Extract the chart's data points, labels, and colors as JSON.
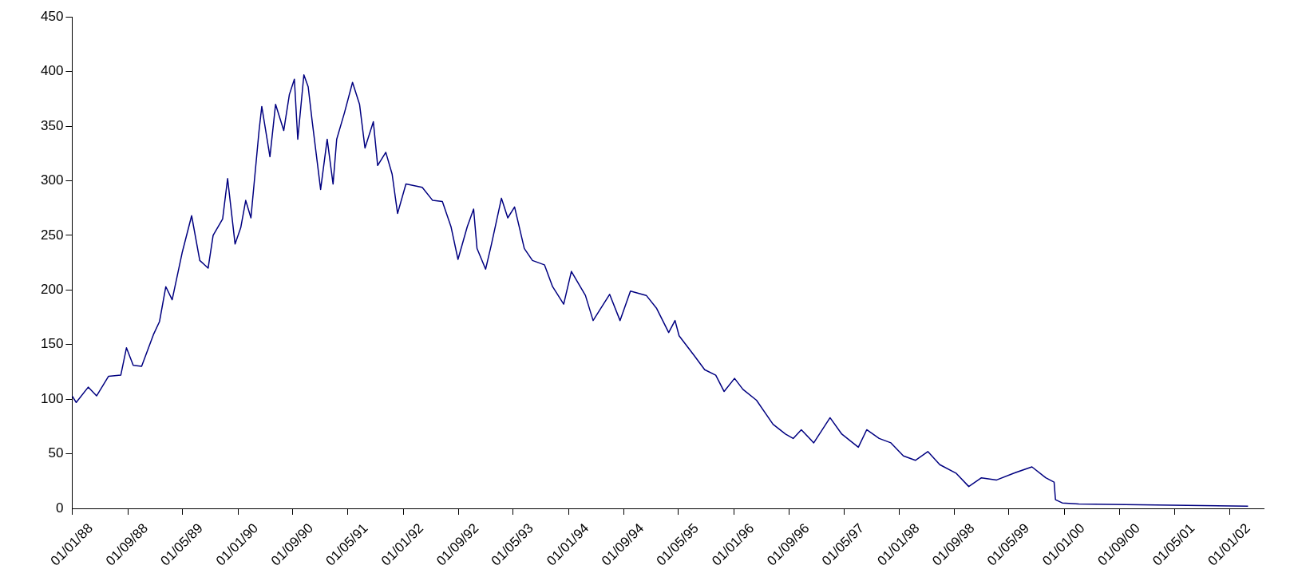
{
  "chart_data": {
    "type": "line",
    "x": [
      "1988-01-01",
      "1988-01-19",
      "1988-03-12",
      "1988-04-18",
      "1988-06-10",
      "1988-08-03",
      "1988-08-28",
      "1988-09-27",
      "1988-11-03",
      "1988-12-25",
      "1989-01-21",
      "1989-02-18",
      "1989-03-18",
      "1989-05-01",
      "1989-06-12",
      "1989-07-18",
      "1989-08-24",
      "1989-09-15",
      "1989-10-27",
      "1989-11-18",
      "1989-12-21",
      "1990-01-15",
      "1990-02-06",
      "1990-03-01",
      "1990-04-06",
      "1990-04-18",
      "1990-05-24",
      "1990-06-18",
      "1990-07-24",
      "1990-08-18",
      "1990-09-09",
      "1990-09-24",
      "1990-10-21",
      "1990-11-09",
      "1990-11-27",
      "1991-01-03",
      "1991-02-01",
      "1991-02-27",
      "1991-03-15",
      "1991-04-18",
      "1991-05-24",
      "1991-06-24",
      "1991-07-18",
      "1991-08-24",
      "1991-09-12",
      "1991-10-18",
      "1991-11-15",
      "1991-12-09",
      "1992-01-15",
      "1992-03-27",
      "1992-05-12",
      "1992-06-24",
      "1992-08-01",
      "1992-09-01",
      "1992-10-12",
      "1992-11-09",
      "1992-11-24",
      "1993-01-01",
      "1993-01-27",
      "1993-03-12",
      "1993-04-09",
      "1993-05-09",
      "1993-06-21",
      "1993-07-27",
      "1993-09-18",
      "1993-10-24",
      "1993-12-12",
      "1994-01-15",
      "1994-03-18",
      "1994-04-21",
      "1994-07-03",
      "1994-08-18",
      "1994-10-03",
      "1994-12-12",
      "1995-01-27",
      "1995-03-21",
      "1995-04-18",
      "1995-05-06",
      "1995-07-15",
      "1995-08-27",
      "1995-10-15",
      "1995-11-21",
      "1996-01-06",
      "1996-02-12",
      "1996-04-12",
      "1996-06-24",
      "1996-08-18",
      "1996-09-21",
      "1996-10-27",
      "1996-12-21",
      "1997-03-03",
      "1997-04-24",
      "1997-07-06",
      "1997-08-12",
      "1997-10-06",
      "1997-11-27",
      "1998-01-21",
      "1998-03-15",
      "1998-05-09",
      "1998-07-01",
      "1998-09-12",
      "1998-11-06",
      "1999-01-01",
      "1999-03-09",
      "1999-05-21",
      "1999-08-12",
      "1999-10-12",
      "1999-11-18",
      "1999-11-24",
      "1999-12-24",
      "2000-03-06",
      "2002-03-24"
    ],
    "series": [
      {
        "color": "#000080",
        "values": [
          103,
          97,
          111,
          103,
          121,
          122,
          147,
          131,
          130,
          159,
          171,
          203,
          191,
          234,
          268,
          227,
          220,
          250,
          265,
          302,
          242,
          257,
          282,
          266,
          346,
          368,
          322,
          370,
          346,
          379,
          393,
          338,
          397,
          386,
          354,
          292,
          338,
          297,
          338,
          362,
          390,
          370,
          330,
          354,
          314,
          326,
          306,
          270,
          297,
          294,
          282,
          281,
          258,
          228,
          258,
          274,
          238,
          219,
          242,
          284,
          266,
          276,
          238,
          227,
          223,
          203,
          187,
          217,
          195,
          172,
          196,
          172,
          199,
          195,
          183,
          161,
          172,
          158,
          139,
          127,
          122,
          107,
          119,
          109,
          99,
          77,
          68,
          64,
          72,
          60,
          83,
          68,
          56,
          72,
          64,
          60,
          48,
          44,
          52,
          40,
          32,
          20,
          28,
          26,
          32,
          38,
          28,
          24,
          8,
          5,
          4,
          2
        ]
      }
    ],
    "xlim": [
      "1988-01-01",
      "2002-06-01"
    ],
    "xticks": [
      {
        "value": "1988-01-01",
        "label": "01/01/88"
      },
      {
        "value": "1988-09-01",
        "label": "01/09/88"
      },
      {
        "value": "1989-05-01",
        "label": "01/05/89"
      },
      {
        "value": "1990-01-01",
        "label": "01/01/90"
      },
      {
        "value": "1990-09-01",
        "label": "01/09/90"
      },
      {
        "value": "1991-05-01",
        "label": "01/05/91"
      },
      {
        "value": "1992-01-01",
        "label": "01/01/92"
      },
      {
        "value": "1992-09-01",
        "label": "01/09/92"
      },
      {
        "value": "1993-05-01",
        "label": "01/05/93"
      },
      {
        "value": "1994-01-01",
        "label": "01/01/94"
      },
      {
        "value": "1994-09-01",
        "label": "01/09/94"
      },
      {
        "value": "1995-05-01",
        "label": "01/05/95"
      },
      {
        "value": "1996-01-01",
        "label": "01/01/96"
      },
      {
        "value": "1996-09-01",
        "label": "01/09/96"
      },
      {
        "value": "1997-05-01",
        "label": "01/05/97"
      },
      {
        "value": "1998-01-01",
        "label": "01/01/98"
      },
      {
        "value": "1998-09-01",
        "label": "01/09/98"
      },
      {
        "value": "1999-05-01",
        "label": "01/05/99"
      },
      {
        "value": "2000-01-01",
        "label": "01/01/00"
      },
      {
        "value": "2000-09-01",
        "label": "01/09/00"
      },
      {
        "value": "2001-05-01",
        "label": "01/05/01"
      },
      {
        "value": "2002-01-01",
        "label": "01/01/02"
      }
    ],
    "ylim": [
      0,
      450
    ],
    "yticks": [
      0,
      50,
      100,
      150,
      200,
      250,
      300,
      350,
      400,
      450
    ],
    "grid": false,
    "legend": false,
    "marker": "none",
    "line_style": "solid"
  }
}
